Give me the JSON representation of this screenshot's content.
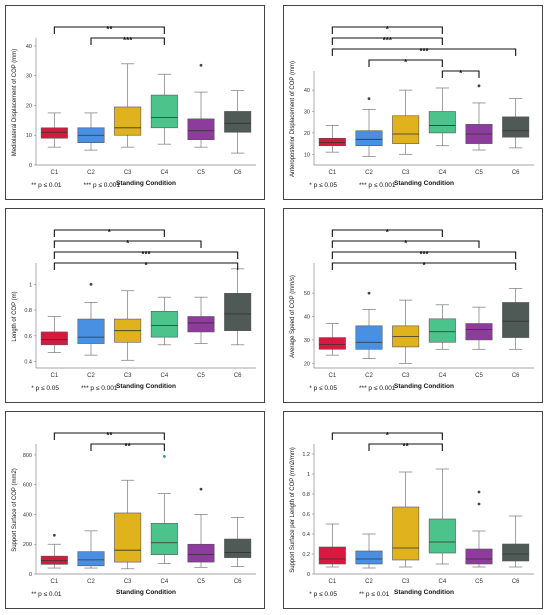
{
  "colors": [
    "#d7193f",
    "#4a90e2",
    "#e0b21d",
    "#4cc38a",
    "#8e3b9e",
    "#4f5a56"
  ],
  "chart_data": [
    {
      "type": "box",
      "ylabel": "Mediolateral Displacement of COP (mm)",
      "xlabel": "Standing Condition",
      "categories": [
        "C1",
        "C2",
        "C3",
        "C4",
        "C5",
        "C6"
      ],
      "ylim": [
        0,
        42
      ],
      "yticks": [
        0,
        10,
        20,
        30,
        40
      ],
      "boxes": [
        {
          "min": 6,
          "q1": 9,
          "median": 11,
          "q3": 12.5,
          "max": 17.5,
          "outliers": []
        },
        {
          "min": 5,
          "q1": 7.5,
          "median": 10,
          "q3": 12.5,
          "max": 17.5,
          "outliers": []
        },
        {
          "min": 6,
          "q1": 10,
          "median": 12.5,
          "q3": 19.5,
          "max": 34,
          "outliers": []
        },
        {
          "min": 7,
          "q1": 12.5,
          "median": 16,
          "q3": 23.5,
          "max": 30.5,
          "outliers": []
        },
        {
          "min": 6,
          "q1": 8.5,
          "median": 11.5,
          "q3": 15.5,
          "max": 24.5,
          "outliers": [
            33.5
          ]
        },
        {
          "min": 4,
          "q1": 11,
          "median": 14,
          "q3": 18,
          "max": 25,
          "outliers": []
        }
      ],
      "brackets": [
        {
          "from": "C1",
          "to": "C4",
          "label": "**"
        },
        {
          "from": "C2",
          "to": "C4",
          "label": "***"
        }
      ],
      "legend": [
        "** p ≤ 0.01",
        "*** p ≤ 0.001"
      ]
    },
    {
      "type": "box",
      "ylabel": "Anteroposterior Displacement of COP (mm)",
      "xlabel": "Standing Condition",
      "categories": [
        "C1",
        "C2",
        "C3",
        "C4",
        "C5",
        "C6"
      ],
      "ylim": [
        5,
        48
      ],
      "yticks": [
        10,
        20,
        30,
        40
      ],
      "boxes": [
        {
          "min": 11,
          "q1": 14,
          "median": 15.5,
          "q3": 17.5,
          "max": 23.5,
          "outliers": []
        },
        {
          "min": 9,
          "q1": 14,
          "median": 17,
          "q3": 21,
          "max": 31,
          "outliers": [
            36
          ]
        },
        {
          "min": 10,
          "q1": 15,
          "median": 19.5,
          "q3": 28,
          "max": 40,
          "outliers": []
        },
        {
          "min": 14,
          "q1": 20,
          "median": 23.5,
          "q3": 30,
          "max": 41,
          "outliers": []
        },
        {
          "min": 12,
          "q1": 15,
          "median": 19.5,
          "q3": 24,
          "max": 34,
          "outliers": [
            42
          ]
        },
        {
          "min": 13,
          "q1": 18,
          "median": 21,
          "q3": 27.5,
          "max": 36,
          "outliers": []
        }
      ],
      "brackets": [
        {
          "from": "C1",
          "to": "C4",
          "label": "*"
        },
        {
          "from": "C1",
          "to": "C4",
          "label": "***"
        },
        {
          "from": "C1",
          "to": "C6",
          "label": "***"
        },
        {
          "from": "C2",
          "to": "C4",
          "label": "*"
        },
        {
          "from": "C4",
          "to": "C5",
          "label": "*"
        }
      ],
      "legend": [
        "* p ≤ 0.05",
        "*** p ≤ 0.001"
      ]
    },
    {
      "type": "box",
      "ylabel": "Length of COP (m)",
      "xlabel": "Standing Condition",
      "categories": [
        "C1",
        "C2",
        "C3",
        "C4",
        "C5",
        "C6"
      ],
      "ylim": [
        0.35,
        1.15
      ],
      "yticks": [
        0.4,
        0.6,
        0.8,
        1
      ],
      "boxes": [
        {
          "min": 0.47,
          "q1": 0.53,
          "median": 0.57,
          "q3": 0.63,
          "max": 0.75,
          "outliers": []
        },
        {
          "min": 0.45,
          "q1": 0.54,
          "median": 0.59,
          "q3": 0.73,
          "max": 0.86,
          "outliers": [
            1.0
          ]
        },
        {
          "min": 0.41,
          "q1": 0.55,
          "median": 0.64,
          "q3": 0.73,
          "max": 0.95,
          "outliers": []
        },
        {
          "min": 0.53,
          "q1": 0.59,
          "median": 0.68,
          "q3": 0.79,
          "max": 0.9,
          "outliers": []
        },
        {
          "min": 0.54,
          "q1": 0.63,
          "median": 0.7,
          "q3": 0.75,
          "max": 0.9,
          "outliers": []
        },
        {
          "min": 0.53,
          "q1": 0.64,
          "median": 0.77,
          "q3": 0.93,
          "max": 1.12,
          "outliers": []
        }
      ],
      "brackets": [
        {
          "from": "C1",
          "to": "C4",
          "label": "*"
        },
        {
          "from": "C1",
          "to": "C5",
          "label": "*"
        },
        {
          "from": "C1",
          "to": "C6",
          "label": "***"
        },
        {
          "from": "C1",
          "to": "C6",
          "label": "*"
        }
      ],
      "legend": [
        "* p ≤ 0.05",
        "*** p ≤ 0.001"
      ]
    },
    {
      "type": "box",
      "ylabel": "Average Speed of COP (mm/s)",
      "xlabel": "Standing Condition",
      "categories": [
        "C1",
        "C2",
        "C3",
        "C4",
        "C5",
        "C6"
      ],
      "ylim": [
        18,
        62
      ],
      "yticks": [
        20,
        30,
        40,
        50
      ],
      "boxes": [
        {
          "min": 23.5,
          "q1": 26,
          "median": 28,
          "q3": 31,
          "max": 37,
          "outliers": []
        },
        {
          "min": 22,
          "q1": 26,
          "median": 29,
          "q3": 36,
          "max": 43,
          "outliers": [
            50
          ]
        },
        {
          "min": 20,
          "q1": 27,
          "median": 31.5,
          "q3": 36,
          "max": 47,
          "outliers": []
        },
        {
          "min": 26,
          "q1": 29,
          "median": 33.5,
          "q3": 39,
          "max": 45,
          "outliers": []
        },
        {
          "min": 26,
          "q1": 30,
          "median": 34.5,
          "q3": 37,
          "max": 44,
          "outliers": []
        },
        {
          "min": 26,
          "q1": 31,
          "median": 38,
          "q3": 46,
          "max": 52,
          "outliers": []
        }
      ],
      "brackets": [
        {
          "from": "C1",
          "to": "C4",
          "label": "*"
        },
        {
          "from": "C1",
          "to": "C5",
          "label": "*"
        },
        {
          "from": "C1",
          "to": "C6",
          "label": "***"
        },
        {
          "from": "C1",
          "to": "C6",
          "label": "*"
        }
      ],
      "legend": [
        "* p ≤ 0.05",
        "*** p ≤ 0.001"
      ]
    },
    {
      "type": "box",
      "ylabel": "Support Surface of COP (mm2)",
      "xlabel": "Standing Condition",
      "categories": [
        "C1",
        "C2",
        "C3",
        "C4",
        "C5",
        "C6"
      ],
      "ylim": [
        0,
        860
      ],
      "yticks": [
        0,
        200,
        400,
        600,
        800
      ],
      "boxes": [
        {
          "min": 40,
          "q1": 65,
          "median": 90,
          "q3": 120,
          "max": 200,
          "outliers": [
            260
          ]
        },
        {
          "min": 40,
          "q1": 55,
          "median": 95,
          "q3": 150,
          "max": 290,
          "outliers": []
        },
        {
          "min": 35,
          "q1": 80,
          "median": 160,
          "q3": 410,
          "max": 630,
          "outliers": []
        },
        {
          "min": 70,
          "q1": 130,
          "median": 210,
          "q3": 340,
          "max": 540,
          "outliers": [
            790
          ]
        },
        {
          "min": 45,
          "q1": 80,
          "median": 130,
          "q3": 200,
          "max": 400,
          "outliers": [
            570
          ]
        },
        {
          "min": 50,
          "q1": 110,
          "median": 145,
          "q3": 235,
          "max": 380,
          "outliers": []
        }
      ],
      "brackets": [
        {
          "from": "C1",
          "to": "C4",
          "label": "**"
        },
        {
          "from": "C2",
          "to": "C4",
          "label": "**"
        }
      ],
      "legend": [
        "** p ≤ 0.01"
      ]
    },
    {
      "type": "box",
      "ylabel": "Support Surface per Length of COP (mm2/mm)",
      "xlabel": "Standing Condition",
      "categories": [
        "C1",
        "C2",
        "C3",
        "C4",
        "C5",
        "C6"
      ],
      "ylim": [
        0,
        1.28
      ],
      "yticks": [
        0,
        0.2,
        0.4,
        0.6,
        0.8,
        1.0,
        1.2
      ],
      "boxes": [
        {
          "min": 0.07,
          "q1": 0.1,
          "median": 0.15,
          "q3": 0.27,
          "max": 0.5,
          "outliers": []
        },
        {
          "min": 0.06,
          "q1": 0.1,
          "median": 0.15,
          "q3": 0.23,
          "max": 0.4,
          "outliers": []
        },
        {
          "min": 0.07,
          "q1": 0.14,
          "median": 0.26,
          "q3": 0.67,
          "max": 1.02,
          "outliers": []
        },
        {
          "min": 0.1,
          "q1": 0.21,
          "median": 0.32,
          "q3": 0.55,
          "max": 1.05,
          "outliers": []
        },
        {
          "min": 0.07,
          "q1": 0.1,
          "median": 0.15,
          "q3": 0.25,
          "max": 0.43,
          "outliers": [
            0.7,
            0.82
          ]
        },
        {
          "min": 0.07,
          "q1": 0.13,
          "median": 0.2,
          "q3": 0.3,
          "max": 0.58,
          "outliers": []
        }
      ],
      "brackets": [
        {
          "from": "C1",
          "to": "C4",
          "label": "*"
        },
        {
          "from": "C2",
          "to": "C4",
          "label": "**"
        }
      ],
      "legend": [
        "* p ≤ 0.05",
        "** p ≤ 0.01"
      ]
    }
  ]
}
